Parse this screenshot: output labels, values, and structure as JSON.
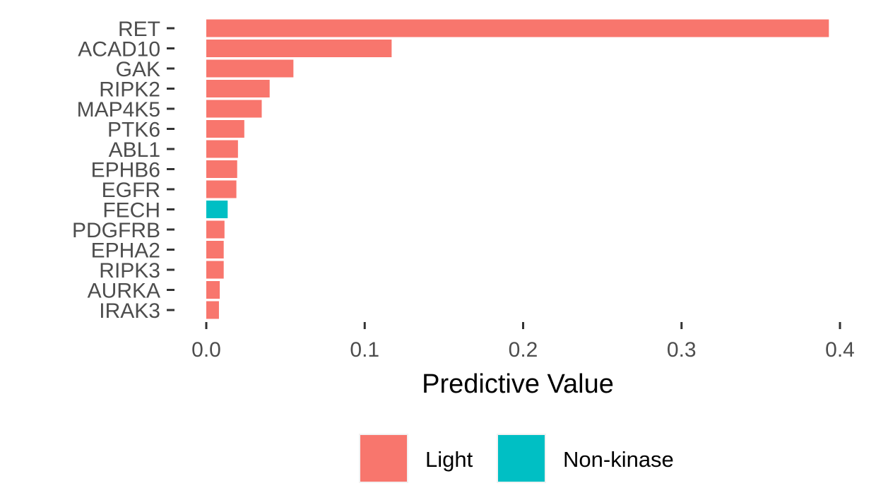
{
  "chart_data": {
    "type": "bar",
    "orientation": "horizontal",
    "categories": [
      "RET",
      "ACAD10",
      "GAK",
      "RIPK2",
      "MAP4K5",
      "PTK6",
      "ABL1",
      "EPHB6",
      "EGFR",
      "FECH",
      "PDGFRB",
      "EPHA2",
      "RIPK3",
      "AURKA",
      "IRAK3"
    ],
    "values": [
      0.393,
      0.117,
      0.055,
      0.04,
      0.035,
      0.024,
      0.02,
      0.0195,
      0.019,
      0.0135,
      0.0115,
      0.011,
      0.011,
      0.0085,
      0.008
    ],
    "groups": [
      "Light",
      "Light",
      "Light",
      "Light",
      "Light",
      "Light",
      "Light",
      "Light",
      "Light",
      "Non-kinase",
      "Light",
      "Light",
      "Light",
      "Light",
      "Light"
    ],
    "xlabel": "Predictive Value",
    "ylabel": "",
    "xlim": [
      0,
      0.4
    ],
    "xticks": [
      "0.0",
      "0.1",
      "0.2",
      "0.3",
      "0.4"
    ],
    "grid": false,
    "legend": {
      "position": "bottom",
      "entries": [
        {
          "label": "Light",
          "color": "#F8766D"
        },
        {
          "label": "Non-kinase",
          "color": "#00BFC4"
        }
      ]
    }
  }
}
